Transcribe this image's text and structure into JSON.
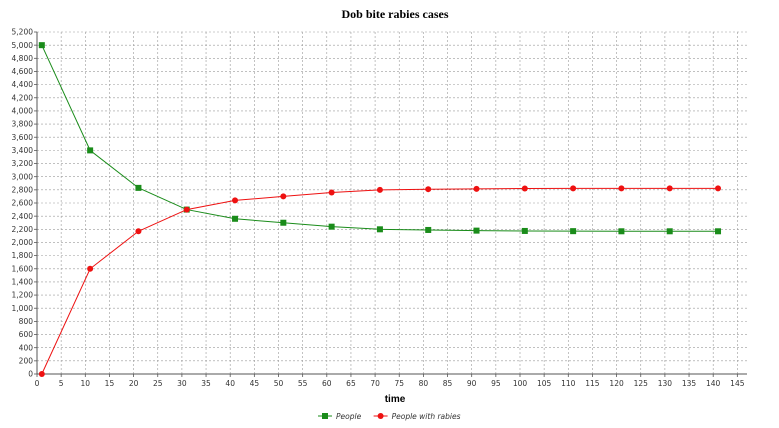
{
  "chart_data": {
    "type": "line",
    "title": "Dob bite rabies cases",
    "xlabel": "time",
    "ylabel": "",
    "xlim": [
      0,
      147
    ],
    "ylim": [
      0,
      5200
    ],
    "x_ticks": [
      0,
      5,
      10,
      15,
      20,
      25,
      30,
      35,
      40,
      45,
      50,
      55,
      60,
      65,
      70,
      75,
      80,
      85,
      90,
      95,
      100,
      105,
      110,
      115,
      120,
      125,
      130,
      135,
      140,
      145
    ],
    "y_ticks": [
      0,
      200,
      400,
      600,
      800,
      1000,
      1200,
      1400,
      1600,
      1800,
      2000,
      2200,
      2400,
      2600,
      2800,
      3000,
      3200,
      3400,
      3600,
      3800,
      4000,
      4200,
      4400,
      4600,
      4800,
      5000,
      5200
    ],
    "grid": true,
    "legend_position": "bottom",
    "x": [
      1,
      11,
      21,
      31,
      41,
      51,
      61,
      71,
      81,
      91,
      101,
      111,
      121,
      131,
      141
    ],
    "series": [
      {
        "name": "People",
        "color": "#1a8c1a",
        "marker": "square",
        "values": [
          5000,
          3400,
          2830,
          2500,
          2360,
          2300,
          2240,
          2200,
          2190,
          2180,
          2175,
          2172,
          2170,
          2170,
          2170
        ]
      },
      {
        "name": "People with rabies",
        "color": "#ee1111",
        "marker": "circle",
        "values": [
          0,
          1600,
          2170,
          2500,
          2640,
          2700,
          2760,
          2800,
          2810,
          2815,
          2820,
          2822,
          2822,
          2822,
          2822
        ]
      }
    ]
  }
}
